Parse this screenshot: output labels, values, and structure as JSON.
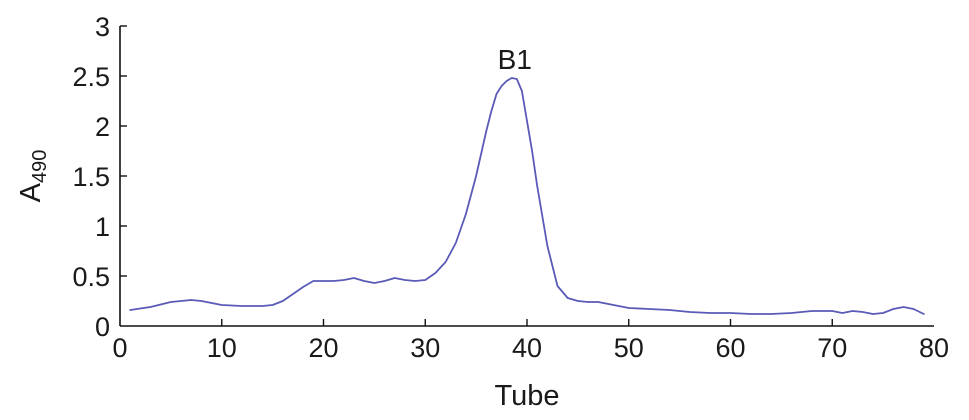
{
  "chart_data": {
    "type": "line",
    "xlabel": "Tube",
    "ylabel": "A",
    "ylabel_subscript": "490",
    "xlim": [
      0,
      80
    ],
    "ylim": [
      0,
      3
    ],
    "x_ticks": [
      "0",
      "10",
      "20",
      "30",
      "40",
      "50",
      "60",
      "70",
      "80"
    ],
    "y_ticks": [
      "0",
      "0.5",
      "1",
      "1.5",
      "2",
      "2.5",
      "3"
    ],
    "grid": false,
    "annotations": [
      {
        "text": "B1",
        "x": 38.8,
        "y": 2.55
      }
    ],
    "series": [
      {
        "color": "#5a5ab8",
        "x": [
          1,
          3,
          5,
          7,
          8,
          10,
          12,
          14,
          15,
          16,
          17,
          18,
          19,
          20,
          21,
          22,
          23,
          24,
          25,
          26,
          27,
          28,
          29,
          30,
          31,
          32,
          33,
          34,
          35,
          36,
          36.5,
          37,
          37.5,
          38,
          38.5,
          39,
          39.5,
          40,
          40.5,
          41,
          42,
          43,
          44,
          45,
          46,
          47,
          48,
          50,
          52,
          54,
          56,
          58,
          60,
          62,
          64,
          66,
          68,
          69,
          70,
          71,
          72,
          73,
          74,
          75,
          76,
          77,
          78,
          79
        ],
        "y": [
          0.16,
          0.19,
          0.24,
          0.26,
          0.25,
          0.21,
          0.2,
          0.2,
          0.21,
          0.25,
          0.32,
          0.39,
          0.45,
          0.45,
          0.45,
          0.46,
          0.48,
          0.45,
          0.43,
          0.45,
          0.48,
          0.46,
          0.45,
          0.46,
          0.53,
          0.64,
          0.83,
          1.12,
          1.5,
          1.95,
          2.15,
          2.32,
          2.4,
          2.45,
          2.48,
          2.47,
          2.35,
          2.05,
          1.75,
          1.4,
          0.8,
          0.4,
          0.28,
          0.25,
          0.24,
          0.24,
          0.22,
          0.18,
          0.17,
          0.16,
          0.14,
          0.13,
          0.13,
          0.12,
          0.12,
          0.13,
          0.15,
          0.15,
          0.15,
          0.13,
          0.15,
          0.14,
          0.12,
          0.13,
          0.17,
          0.19,
          0.17,
          0.12
        ]
      }
    ]
  }
}
